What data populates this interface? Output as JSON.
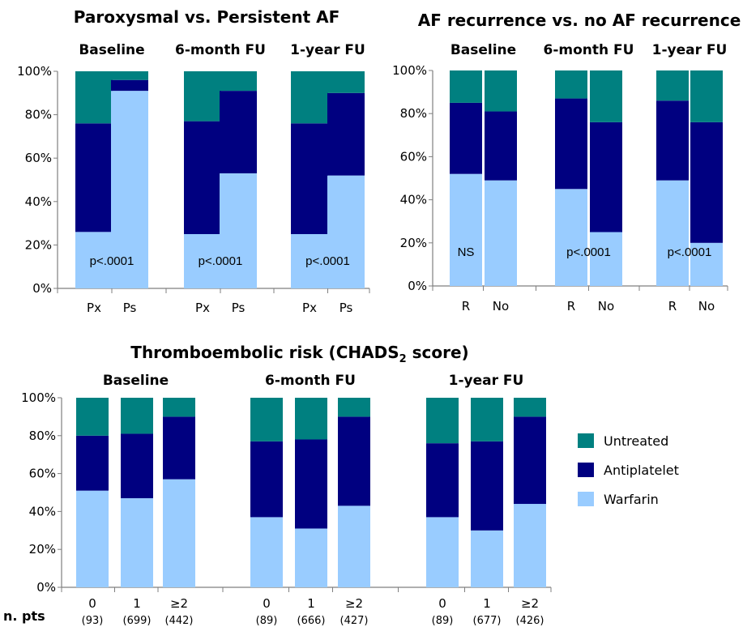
{
  "colors": {
    "Warfarin": "#99ccff",
    "Antiplatelet": "#000080",
    "Untreated": "#008080",
    "axis": "#7f7f7f"
  },
  "legend": [
    {
      "name": "Untreated",
      "color": "#008080"
    },
    {
      "name": "Antiplatelet",
      "color": "#000080"
    },
    {
      "name": "Warfarin",
      "color": "#99ccff"
    }
  ],
  "n_label": "n. pts",
  "chart_data": [
    {
      "type": "bar",
      "stacked": true,
      "title": "Paroxysmal vs. Persistent AF",
      "y_ticks": [
        "0%",
        "20%",
        "40%",
        "60%",
        "80%",
        "100%"
      ],
      "ylim": [
        0,
        100
      ],
      "groups": [
        {
          "name": "Baseline",
          "annotation": "p<.0001",
          "bars": [
            {
              "category": "Px",
              "Warfarin": 26,
              "Antiplatelet": 50,
              "Untreated": 24
            },
            {
              "category": "Ps",
              "Warfarin": 91,
              "Antiplatelet": 5,
              "Untreated": 4
            }
          ]
        },
        {
          "name": "6-month FU",
          "annotation": "p<.0001",
          "bars": [
            {
              "category": "Px",
              "Warfarin": 25,
              "Antiplatelet": 52,
              "Untreated": 23
            },
            {
              "category": "Ps",
              "Warfarin": 53,
              "Antiplatelet": 38,
              "Untreated": 9
            }
          ]
        },
        {
          "name": "1-year FU",
          "annotation": "p<.0001",
          "bars": [
            {
              "category": "Px",
              "Warfarin": 25,
              "Antiplatelet": 51,
              "Untreated": 24
            },
            {
              "category": "Ps",
              "Warfarin": 52,
              "Antiplatelet": 38,
              "Untreated": 10
            }
          ]
        }
      ]
    },
    {
      "type": "bar",
      "stacked": true,
      "title": "AF recurrence vs. no AF recurrence",
      "y_ticks": [
        "0%",
        "20%",
        "40%",
        "60%",
        "80%",
        "100%"
      ],
      "ylim": [
        0,
        100
      ],
      "groups": [
        {
          "name": "Baseline",
          "annotation": "NS",
          "bars": [
            {
              "category": "R",
              "Warfarin": 52,
              "Antiplatelet": 33,
              "Untreated": 15
            },
            {
              "category": "No",
              "Warfarin": 49,
              "Antiplatelet": 32,
              "Untreated": 19
            }
          ]
        },
        {
          "name": "6-month FU",
          "annotation": "p<.0001",
          "bars": [
            {
              "category": "R",
              "Warfarin": 45,
              "Antiplatelet": 42,
              "Untreated": 13
            },
            {
              "category": "No",
              "Warfarin": 25,
              "Antiplatelet": 51,
              "Untreated": 24
            }
          ]
        },
        {
          "name": "1-year FU",
          "annotation": "p<.0001",
          "bars": [
            {
              "category": "R",
              "Warfarin": 49,
              "Antiplatelet": 37,
              "Untreated": 14
            },
            {
              "category": "No",
              "Warfarin": 20,
              "Antiplatelet": 56,
              "Untreated": 24
            }
          ]
        }
      ]
    },
    {
      "type": "bar",
      "stacked": true,
      "title": "Thromboembolic risk (CHADS",
      "title_subscript": "2",
      "title_suffix": " score)",
      "y_ticks": [
        "0%",
        "20%",
        "40%",
        "60%",
        "80%",
        "100%"
      ],
      "ylim": [
        0,
        100
      ],
      "groups": [
        {
          "name": "Baseline",
          "bars": [
            {
              "category": "0",
              "n": "(93)",
              "Warfarin": 51,
              "Antiplatelet": 29,
              "Untreated": 20
            },
            {
              "category": "1",
              "n": "(699)",
              "Warfarin": 47,
              "Antiplatelet": 34,
              "Untreated": 19
            },
            {
              "category": "≥2",
              "n": "(442)",
              "Warfarin": 57,
              "Antiplatelet": 33,
              "Untreated": 10
            }
          ]
        },
        {
          "name": "6-month FU",
          "bars": [
            {
              "category": "0",
              "n": "(89)",
              "Warfarin": 37,
              "Antiplatelet": 40,
              "Untreated": 23
            },
            {
              "category": "1",
              "n": "(666)",
              "Warfarin": 31,
              "Antiplatelet": 47,
              "Untreated": 22
            },
            {
              "category": "≥2",
              "n": "(427)",
              "Warfarin": 43,
              "Antiplatelet": 47,
              "Untreated": 10
            }
          ]
        },
        {
          "name": "1-year FU",
          "bars": [
            {
              "category": "0",
              "n": "(89)",
              "Warfarin": 37,
              "Antiplatelet": 39,
              "Untreated": 24
            },
            {
              "category": "1",
              "n": "(677)",
              "Warfarin": 30,
              "Antiplatelet": 47,
              "Untreated": 23
            },
            {
              "category": "≥2",
              "n": "(426)",
              "Warfarin": 44,
              "Antiplatelet": 46,
              "Untreated": 10
            }
          ]
        }
      ]
    }
  ]
}
